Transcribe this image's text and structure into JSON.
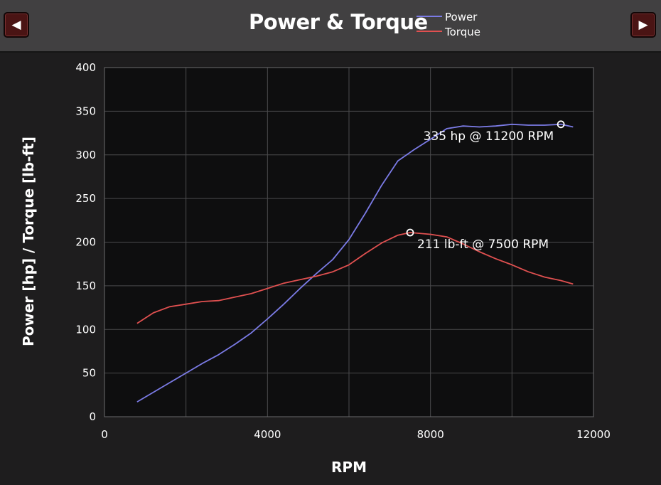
{
  "nav": {
    "prev_icon": "◀",
    "next_icon": "▶"
  },
  "chart_data": {
    "type": "line",
    "title": "Power & Torque",
    "xlabel": "RPM",
    "ylabel": "Power [hp] / Torque [lb-ft]",
    "xlim": [
      0,
      12000
    ],
    "ylim": [
      0,
      400
    ],
    "xticks": [
      0,
      4000,
      8000,
      12000
    ],
    "yticks": [
      0,
      50,
      100,
      150,
      200,
      250,
      300,
      350,
      400
    ],
    "grid": true,
    "legend_position": "top",
    "series": [
      {
        "name": "Power",
        "color": "#7b7be6",
        "x": [
          800,
          1200,
          1600,
          2000,
          2400,
          2800,
          3200,
          3600,
          4000,
          4400,
          4800,
          5200,
          5600,
          6000,
          6400,
          6800,
          7200,
          7600,
          8000,
          8400,
          8800,
          9200,
          9600,
          10000,
          10400,
          10800,
          11200,
          11500
        ],
        "y": [
          17,
          28,
          39,
          50,
          61,
          71,
          83,
          96,
          112,
          129,
          147,
          164,
          180,
          203,
          233,
          265,
          293,
          306,
          318,
          330,
          333,
          332,
          333,
          335,
          334,
          334,
          335,
          332
        ]
      },
      {
        "name": "Torque",
        "color": "#e05050",
        "x": [
          800,
          1200,
          1600,
          2000,
          2400,
          2800,
          3200,
          3600,
          4000,
          4400,
          4800,
          5200,
          5600,
          6000,
          6400,
          6800,
          7200,
          7500,
          8000,
          8400,
          8800,
          9200,
          9600,
          10000,
          10400,
          10800,
          11200,
          11500
        ],
        "y": [
          107,
          119,
          126,
          129,
          132,
          133,
          137,
          141,
          147,
          153,
          157,
          161,
          166,
          174,
          187,
          199,
          208,
          211,
          209,
          206,
          198,
          189,
          181,
          174,
          166,
          160,
          156,
          152
        ]
      }
    ],
    "annotations": [
      {
        "series": "Power",
        "x": 11200,
        "y": 335,
        "text": "335 hp @ 11200 RPM"
      },
      {
        "series": "Torque",
        "x": 7500,
        "y": 211,
        "text": "211 lb-ft @ 7500 RPM"
      }
    ]
  },
  "colors": {
    "background": "#1e1d1e",
    "header": "#414041",
    "plot_background": "#0e0e0f",
    "grid": "#4a4a4c",
    "nav_button": "#4a1414"
  }
}
